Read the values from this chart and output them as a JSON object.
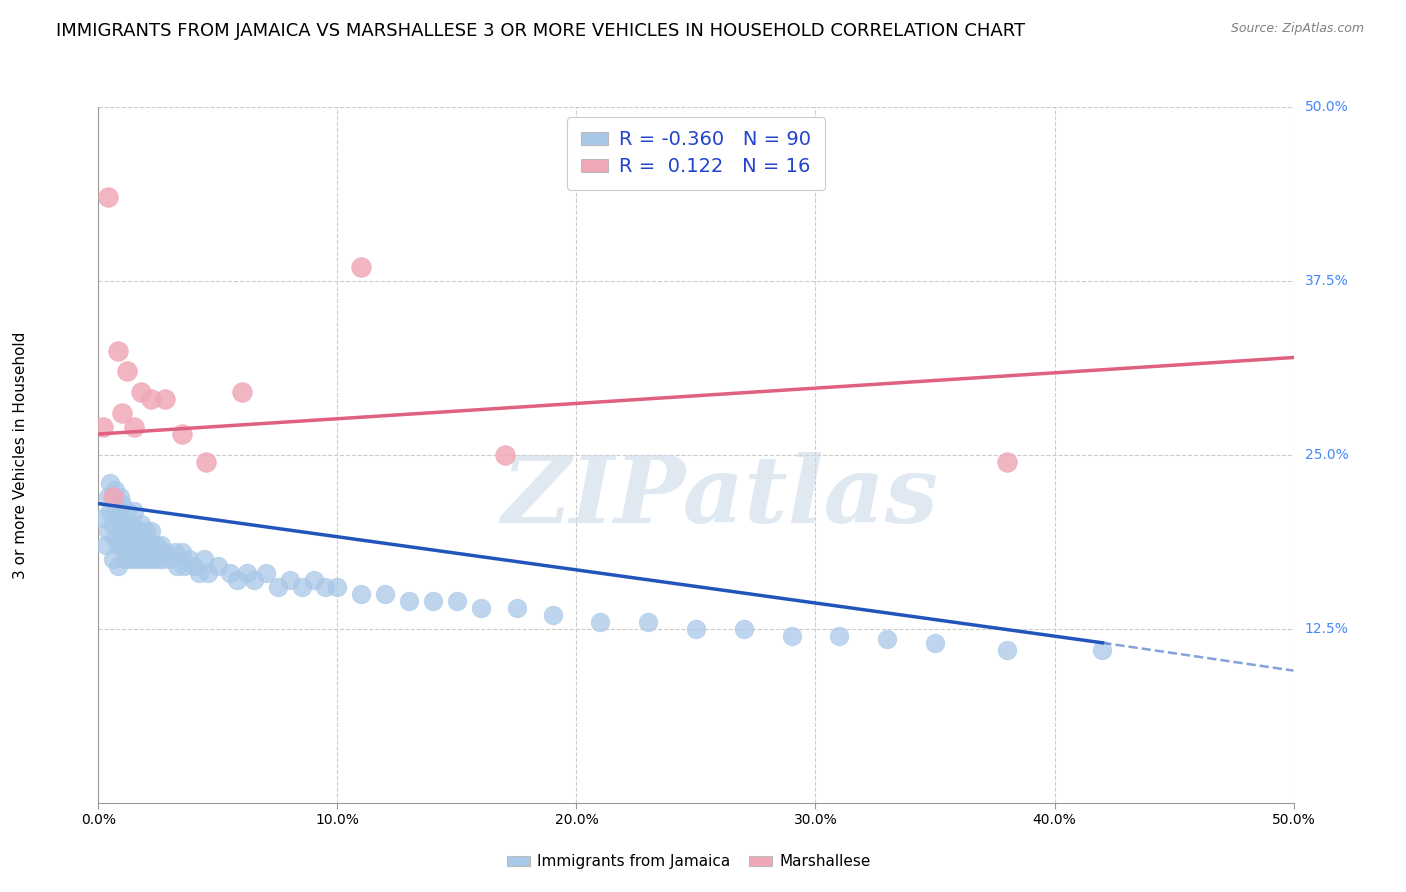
{
  "title": "IMMIGRANTS FROM JAMAICA VS MARSHALLESE 3 OR MORE VEHICLES IN HOUSEHOLD CORRELATION CHART",
  "source": "Source: ZipAtlas.com",
  "ylabel": "3 or more Vehicles in Household",
  "xlim": [
    0.0,
    0.5
  ],
  "ylim": [
    0.0,
    0.5
  ],
  "xticks": [
    0.0,
    0.1,
    0.2,
    0.3,
    0.4,
    0.5
  ],
  "xtick_labels": [
    "0.0%",
    "10.0%",
    "20.0%",
    "30.0%",
    "40.0%",
    "50.0%"
  ],
  "ytick_labels_right": [
    "12.5%",
    "25.0%",
    "37.5%",
    "50.0%"
  ],
  "yticks_right": [
    0.125,
    0.25,
    0.375,
    0.5
  ],
  "watermark": "ZIPatlas",
  "legend_R_blue": "-0.360",
  "legend_N_blue": "90",
  "legend_R_pink": "0.122",
  "legend_N_pink": "16",
  "blue_color": "#a8c8e8",
  "pink_color": "#f0a8b8",
  "trend_blue_color": "#2255bb",
  "trend_pink_color": "#e06080",
  "blue_scatter": {
    "x": [
      0.002,
      0.003,
      0.004,
      0.004,
      0.005,
      0.005,
      0.006,
      0.006,
      0.007,
      0.007,
      0.007,
      0.008,
      0.008,
      0.008,
      0.009,
      0.009,
      0.01,
      0.01,
      0.01,
      0.011,
      0.011,
      0.012,
      0.012,
      0.012,
      0.013,
      0.013,
      0.014,
      0.014,
      0.015,
      0.015,
      0.015,
      0.016,
      0.016,
      0.017,
      0.017,
      0.018,
      0.018,
      0.019,
      0.019,
      0.02,
      0.02,
      0.021,
      0.022,
      0.022,
      0.023,
      0.024,
      0.025,
      0.026,
      0.027,
      0.028,
      0.03,
      0.032,
      0.033,
      0.035,
      0.036,
      0.038,
      0.04,
      0.042,
      0.044,
      0.046,
      0.05,
      0.055,
      0.058,
      0.062,
      0.065,
      0.07,
      0.075,
      0.08,
      0.085,
      0.09,
      0.095,
      0.1,
      0.11,
      0.12,
      0.13,
      0.14,
      0.15,
      0.16,
      0.175,
      0.19,
      0.21,
      0.23,
      0.25,
      0.27,
      0.29,
      0.31,
      0.33,
      0.35,
      0.38,
      0.42
    ],
    "y": [
      0.205,
      0.185,
      0.22,
      0.195,
      0.21,
      0.23,
      0.175,
      0.2,
      0.215,
      0.19,
      0.225,
      0.185,
      0.205,
      0.17,
      0.195,
      0.22,
      0.185,
      0.2,
      0.215,
      0.175,
      0.195,
      0.185,
      0.2,
      0.21,
      0.175,
      0.195,
      0.185,
      0.2,
      0.175,
      0.19,
      0.21,
      0.18,
      0.195,
      0.175,
      0.195,
      0.185,
      0.2,
      0.175,
      0.19,
      0.18,
      0.195,
      0.175,
      0.185,
      0.195,
      0.175,
      0.185,
      0.175,
      0.185,
      0.175,
      0.18,
      0.175,
      0.18,
      0.17,
      0.18,
      0.17,
      0.175,
      0.17,
      0.165,
      0.175,
      0.165,
      0.17,
      0.165,
      0.16,
      0.165,
      0.16,
      0.165,
      0.155,
      0.16,
      0.155,
      0.16,
      0.155,
      0.155,
      0.15,
      0.15,
      0.145,
      0.145,
      0.145,
      0.14,
      0.14,
      0.135,
      0.13,
      0.13,
      0.125,
      0.125,
      0.12,
      0.12,
      0.118,
      0.115,
      0.11,
      0.11
    ]
  },
  "pink_scatter": {
    "x": [
      0.002,
      0.004,
      0.006,
      0.008,
      0.01,
      0.012,
      0.015,
      0.018,
      0.022,
      0.028,
      0.035,
      0.045,
      0.06,
      0.11,
      0.17,
      0.38
    ],
    "y": [
      0.27,
      0.435,
      0.22,
      0.325,
      0.28,
      0.31,
      0.27,
      0.295,
      0.29,
      0.29,
      0.265,
      0.245,
      0.295,
      0.385,
      0.25,
      0.245
    ]
  },
  "trend_blue_solid": {
    "x": [
      0.0,
      0.42
    ],
    "y": [
      0.215,
      0.115
    ]
  },
  "trend_blue_dash": {
    "x": [
      0.42,
      0.5
    ],
    "y": [
      0.115,
      0.095
    ]
  },
  "trend_pink": {
    "x": [
      0.0,
      0.5
    ],
    "y": [
      0.265,
      0.32
    ]
  },
  "grid_color": "#cccccc",
  "background_color": "#ffffff",
  "title_fontsize": 13,
  "source_fontsize": 9,
  "axis_label_fontsize": 11,
  "tick_fontsize": 10,
  "legend_fontsize": 14,
  "ytick_label_color": "#4488ff",
  "bottom_legend": [
    {
      "label": "Immigrants from Jamaica",
      "color": "#a8c8e8"
    },
    {
      "label": "Marshallese",
      "color": "#f0a8b8"
    }
  ]
}
